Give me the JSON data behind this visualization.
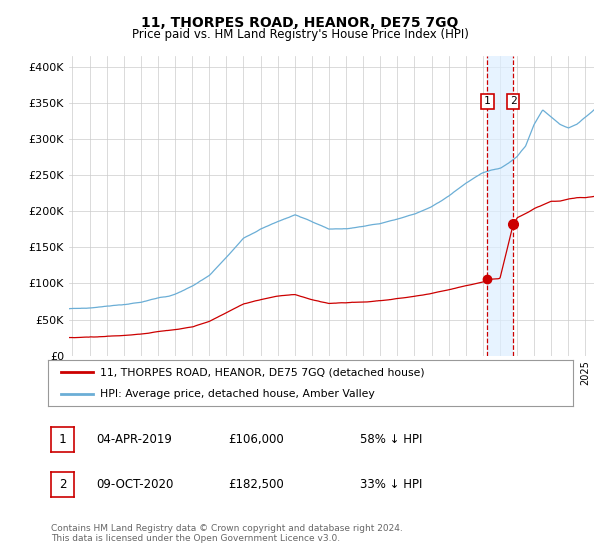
{
  "title": "11, THORPES ROAD, HEANOR, DE75 7GQ",
  "subtitle": "Price paid vs. HM Land Registry's House Price Index (HPI)",
  "ylabel_ticks": [
    "£0",
    "£50K",
    "£100K",
    "£150K",
    "£200K",
    "£250K",
    "£300K",
    "£350K",
    "£400K"
  ],
  "ytick_values": [
    0,
    50000,
    100000,
    150000,
    200000,
    250000,
    300000,
    350000,
    400000
  ],
  "ylim": [
    0,
    415000
  ],
  "xlim_start": 1994.8,
  "xlim_end": 2025.5,
  "hpi_color": "#6baed6",
  "price_color": "#cc0000",
  "shade_color": "#ddeeff",
  "marker1_date": 2019.27,
  "marker2_date": 2020.77,
  "marker1_price": 106000,
  "marker2_price": 182500,
  "legend_label1": "11, THORPES ROAD, HEANOR, DE75 7GQ (detached house)",
  "legend_label2": "HPI: Average price, detached house, Amber Valley",
  "footer": "Contains HM Land Registry data © Crown copyright and database right 2024.\nThis data is licensed under the Open Government Licence v3.0.",
  "background_color": "#ffffff",
  "grid_color": "#cccccc",
  "hpi_key_years": [
    1994.8,
    1995,
    1996,
    1997,
    1998,
    1999,
    2000,
    2001,
    2002,
    2003,
    2004,
    2005,
    2006,
    2007,
    2008,
    2009,
    2010,
    2011,
    2012,
    2013,
    2014,
    2015,
    2016,
    2017,
    2018,
    2019,
    2019.5,
    2020,
    2020.5,
    2021,
    2021.5,
    2022,
    2022.5,
    2023,
    2023.5,
    2024,
    2024.5,
    2025,
    2025.5
  ],
  "hpi_key_vals": [
    65000,
    65000,
    66000,
    68000,
    70000,
    73000,
    79000,
    84000,
    95000,
    110000,
    135000,
    162000,
    175000,
    185000,
    195000,
    185000,
    175000,
    175000,
    178000,
    182000,
    188000,
    195000,
    205000,
    220000,
    238000,
    252000,
    256000,
    258000,
    265000,
    275000,
    290000,
    320000,
    340000,
    330000,
    320000,
    315000,
    320000,
    330000,
    340000
  ],
  "price_key_years": [
    1994.8,
    1995,
    1996,
    1997,
    1998,
    1999,
    2000,
    2001,
    2002,
    2003,
    2004,
    2005,
    2006,
    2007,
    2008,
    2009,
    2010,
    2011,
    2012,
    2013,
    2014,
    2015,
    2016,
    2017,
    2018,
    2019.0,
    2019.27,
    2019.5,
    2020.0,
    2020.77,
    2021.0,
    2021.5,
    2022,
    2022.5,
    2023,
    2023.5,
    2024,
    2024.5,
    2025,
    2025.5
  ],
  "price_key_vals": [
    25000,
    25000,
    26000,
    27000,
    28000,
    30000,
    33000,
    36000,
    40000,
    48000,
    60000,
    72000,
    78000,
    83000,
    85000,
    78000,
    73000,
    74000,
    75000,
    77000,
    80000,
    83000,
    87000,
    92000,
    98000,
    103000,
    106000,
    107000,
    108000,
    182500,
    192000,
    198000,
    205000,
    210000,
    215000,
    215000,
    218000,
    220000,
    220000,
    222000
  ]
}
